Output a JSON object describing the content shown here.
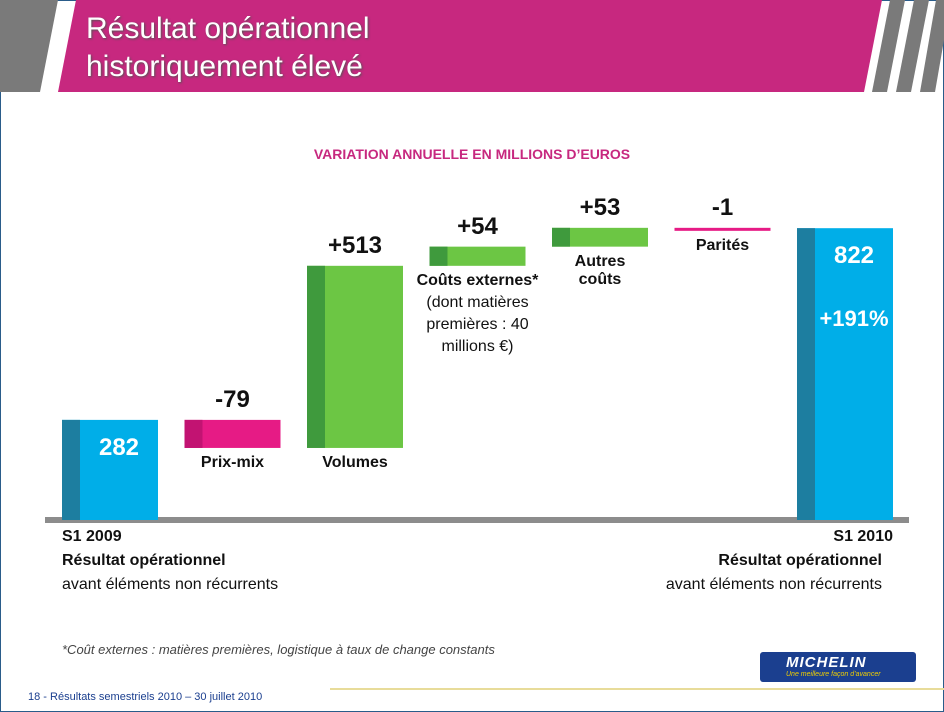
{
  "header": {
    "title_lines": [
      "Résultat opérationnel",
      "historiquement élevé"
    ]
  },
  "chart_data": {
    "type": "waterfall",
    "title": "VARIATION ANNUELLE EN MILLIONS D’EUROS",
    "categories": [
      "S1 2009",
      "Prix-mix",
      "Volumes",
      "Coûts externes*",
      "Autres coûts",
      "Parités",
      "S1 2010"
    ],
    "values": [
      282,
      -79,
      513,
      54,
      53,
      -1,
      822
    ],
    "value_labels": [
      "282",
      "-79",
      "+513",
      "+54",
      "+53",
      "-1",
      "822"
    ],
    "colors": {
      "total": "#00aee8",
      "total_shade": "#1d7ea0",
      "increase": "#6cc644",
      "increase_shade": "#3f9a3d",
      "decrease": "#e61b85",
      "decrease_shade": "#c21372"
    },
    "annotations": {
      "costs_note": "(dont matières premières : 40 millions €)",
      "total_change": "+191%"
    }
  },
  "bottom_labels": [
    {
      "line1": "Résultat opérationnel",
      "line2": "avant éléments non récurrents"
    },
    {
      "line1": "Résultat opérationnel",
      "line2": "avant éléments non récurrents"
    }
  ],
  "footnote": "*Coût externes : matières premières, logistique à taux de change constants",
  "footer": "18 - Résultats semestriels 2010 – 30 juillet 2010",
  "logo": {
    "brand": "MICHELIN",
    "tagline": "Une meilleure façon d’avancer"
  }
}
